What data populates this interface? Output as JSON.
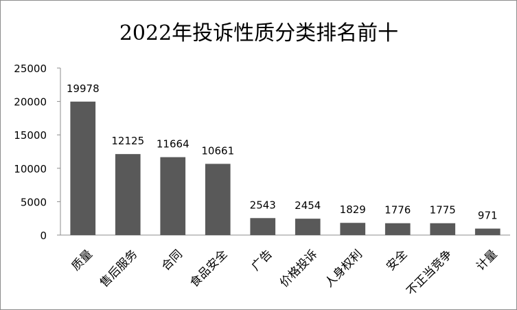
{
  "chart_data": {
    "type": "bar",
    "title": "2022年投诉性质分类排名前十",
    "xlabel": "",
    "ylabel": "",
    "categories": [
      "质量",
      "售后服务",
      "合同",
      "食品安全",
      "广告",
      "价格投诉",
      "人身权利",
      "安全",
      "不正当竞争",
      "计量"
    ],
    "values": [
      19978,
      12125,
      11664,
      10661,
      2543,
      2454,
      1829,
      1776,
      1775,
      971
    ],
    "ylim": [
      0,
      25000
    ],
    "yticks": [
      0,
      5000,
      10000,
      15000,
      20000,
      25000
    ],
    "grid": false,
    "legend": "none",
    "bar_color": "#595959"
  }
}
